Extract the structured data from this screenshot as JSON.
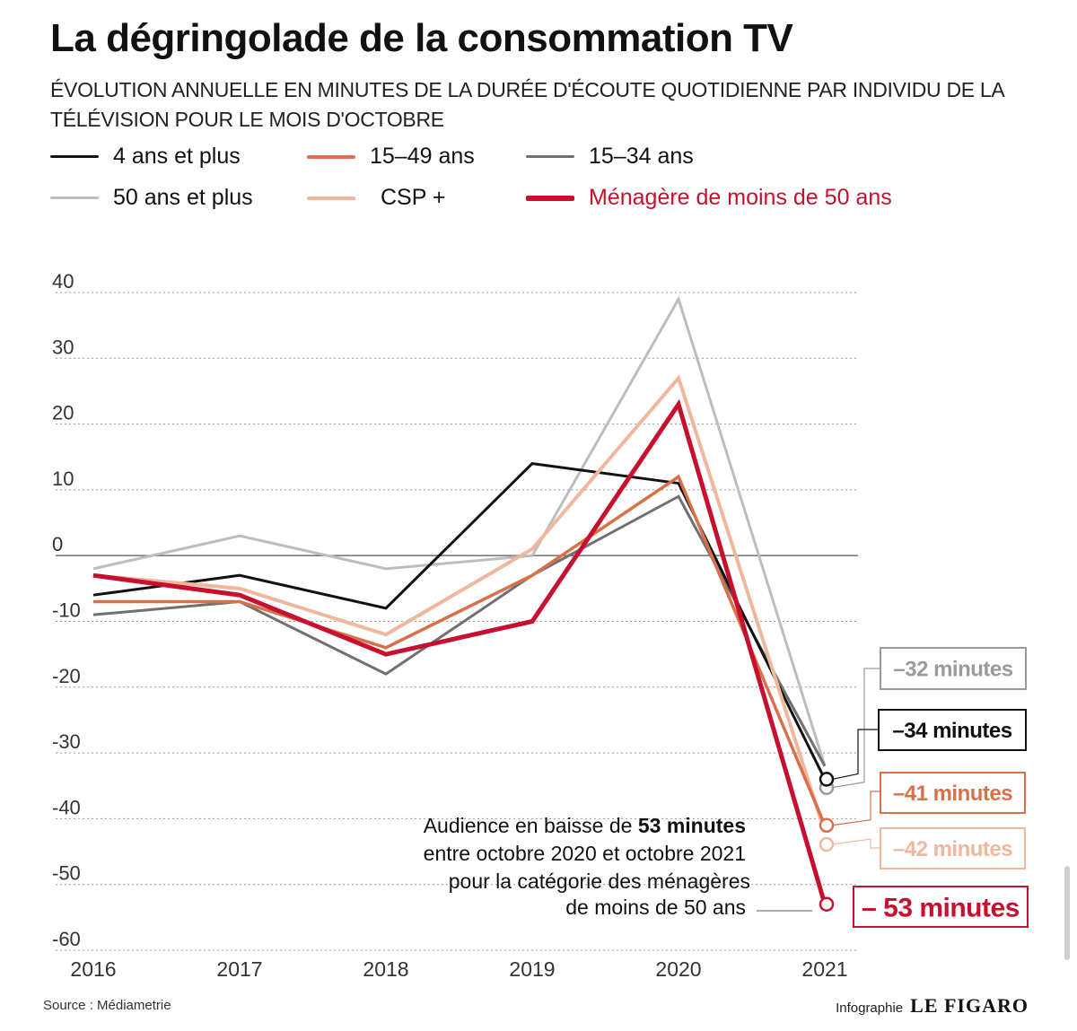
{
  "header": {
    "title": "La dégringolade de la consommation TV",
    "subtitle": "ÉVOLUTION ANNUELLE EN MINUTES DE LA DURÉE D'ÉCOUTE QUOTIDIENNE PAR INDIVIDU DE LA TÉLÉVISION POUR LE MOIS D'OCTOBRE"
  },
  "legend": [
    {
      "label": "4 ans et plus",
      "color": "#111111"
    },
    {
      "label": "15–49 ans",
      "color": "#d8714a"
    },
    {
      "label": "15–34 ans",
      "color": "#707070"
    },
    {
      "label": "50 ans et plus",
      "color": "#bdbdbd"
    },
    {
      "label": "CSP +",
      "color": "#efb89d"
    },
    {
      "label": "Ménagère de moins de 50 ans",
      "color": "#c8102e"
    }
  ],
  "chart_data": {
    "type": "line",
    "title": "La dégringolade de la consommation TV",
    "xlabel": "",
    "ylabel": "",
    "x": [
      "2016",
      "2017",
      "2018",
      "2019",
      "2020",
      "2021"
    ],
    "ylim": [
      -60,
      40
    ],
    "yticks": [
      40,
      30,
      20,
      10,
      0,
      -10,
      -20,
      -30,
      -40,
      -50,
      -60
    ],
    "ytick_labels": [
      "40",
      "30",
      "20",
      "10",
      "0",
      "-10",
      "-20",
      "-30",
      "-40",
      "-50",
      "-60"
    ],
    "grid": true,
    "series": [
      {
        "name": "50 ans et plus",
        "color": "#bdbdbd",
        "width": 3,
        "values": [
          -2,
          3,
          -2,
          0,
          39,
          -32
        ]
      },
      {
        "name": "15–34 ans",
        "color": "#707070",
        "width": 3,
        "values": [
          -9,
          -7,
          -18,
          -3,
          9,
          -32
        ]
      },
      {
        "name": "4 ans et plus",
        "color": "#111111",
        "width": 3,
        "values": [
          -6,
          -3,
          -8,
          14,
          11,
          -34
        ]
      },
      {
        "name": "CSP +",
        "color": "#efb89d",
        "width": 4,
        "values": [
          -3,
          -5,
          -12,
          1,
          27,
          -42
        ]
      },
      {
        "name": "15–49 ans",
        "color": "#d8714a",
        "width": 3.5,
        "values": [
          -7,
          -7,
          -14,
          -3,
          12,
          -41
        ]
      },
      {
        "name": "Ménagère de moins de 50 ans",
        "color": "#c8102e",
        "width": 5,
        "values": [
          -3,
          -6,
          -15,
          -10,
          23,
          -53
        ]
      }
    ],
    "end_labels": [
      {
        "text": "–32 minutes",
        "value": -32,
        "color": "#9a9a9a",
        "series": "50 ans et plus"
      },
      {
        "text": "–34 minutes",
        "value": -34,
        "color": "#111111",
        "series": "4 ans et plus"
      },
      {
        "text": "–41 minutes",
        "value": -41,
        "color": "#d8714a",
        "series": "15–49 ans"
      },
      {
        "text": "–42 minutes",
        "value": -42,
        "color": "#efb89d",
        "series": "CSP +"
      },
      {
        "text": "– 53 minutes",
        "value": -53,
        "color": "#c8102e",
        "series": "Ménagère de moins de 50 ans"
      }
    ],
    "annotation": {
      "lines": [
        [
          {
            "text": "Audience en baisse de ",
            "bold": false
          },
          {
            "text": "53 minutes",
            "bold": true
          }
        ],
        [
          {
            "text": "entre octobre 2020 et octobre 2021",
            "bold": false
          }
        ],
        [
          {
            "text": "pour la catégorie des ménagères",
            "bold": false
          }
        ],
        [
          {
            "text": "de moins de 50 ans",
            "bold": false
          }
        ]
      ]
    }
  },
  "footer": {
    "source": "Source : Médiametrie",
    "credit_label": "Infographie",
    "credit_brand": "LE FIGARO"
  }
}
